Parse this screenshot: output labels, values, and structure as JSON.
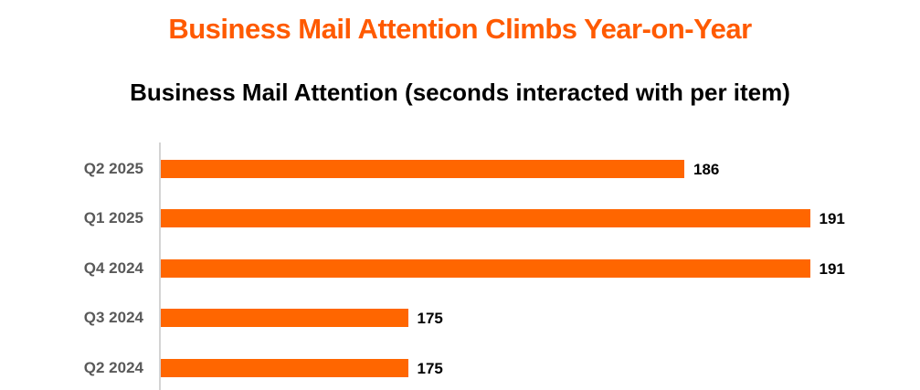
{
  "header": {
    "title": "Business Mail Attention Climbs Year-on-Year",
    "subtitle": "Business Mail Attention (seconds interacted with per item)"
  },
  "colors": {
    "title": "#FF5A00",
    "bar": "#FF6600",
    "axis": "#D4D4D4",
    "category_label": "#595959",
    "value_label": "#000000"
  },
  "chart_data": {
    "type": "bar",
    "orientation": "horizontal",
    "title": "Business Mail Attention Climbs Year-on-Year",
    "subtitle": "Business Mail Attention (seconds interacted with per item)",
    "xlabel": "",
    "ylabel": "",
    "categories": [
      "Q2 2025",
      "Q1 2025",
      "Q4 2024",
      "Q3 2024",
      "Q2 2024"
    ],
    "values": [
      186,
      191,
      191,
      175,
      175
    ],
    "data_labels": [
      "186",
      "191",
      "191",
      "175",
      "175"
    ],
    "xlim": [
      165,
      192
    ],
    "grid": false,
    "legend": null
  }
}
